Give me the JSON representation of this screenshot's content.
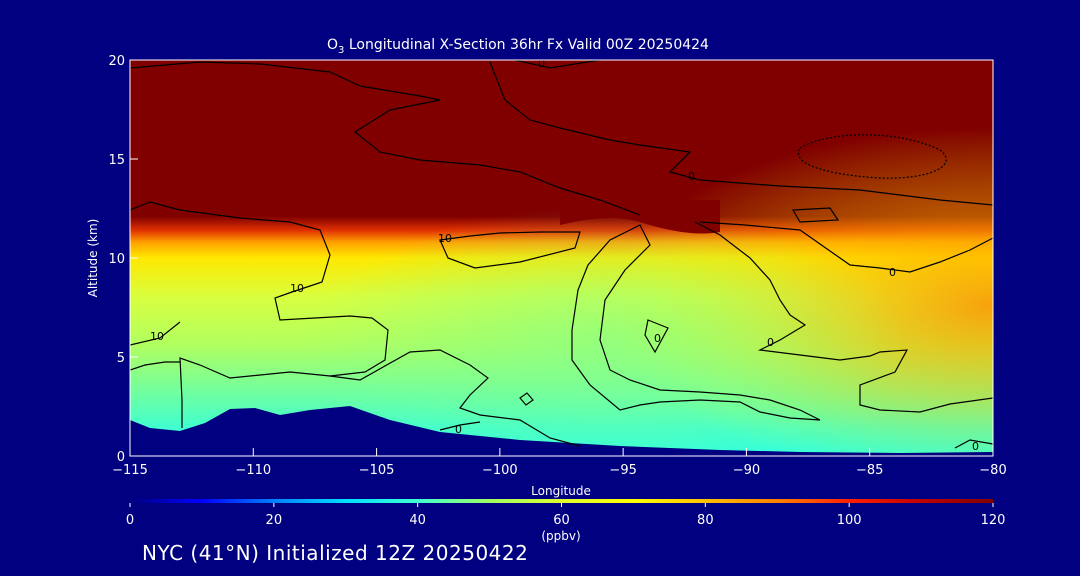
{
  "chart_data": {
    "type": "heatmap",
    "title": {
      "species": "O",
      "subscript": "3",
      "rest": " Longitudinal X-Section 36hr  Fx Valid 00Z 20250424"
    },
    "xlabel": "Longitude",
    "ylabel": "Altitude (km)",
    "xlim": [
      -115,
      -80
    ],
    "ylim": [
      0,
      20
    ],
    "x_ticks": [
      -115,
      -110,
      -105,
      -100,
      -95,
      -90,
      -85,
      -80
    ],
    "x_tick_labels": [
      "−115",
      "−110",
      "−105",
      "−100",
      "−95",
      "−90",
      "−85",
      "−80"
    ],
    "y_ticks": [
      0,
      5,
      10,
      15,
      20
    ],
    "y_tick_labels": [
      "0",
      "5",
      "10",
      "15",
      "20"
    ],
    "colorbar": {
      "min": 0,
      "max": 120,
      "ticks": [
        0,
        20,
        40,
        60,
        80,
        100,
        120
      ],
      "tick_labels": [
        "0",
        "20",
        "40",
        "60",
        "80",
        "100",
        "120"
      ],
      "units": "(ppbv)",
      "colors": [
        "#000080",
        "#0000ff",
        "#0080ff",
        "#00e0ff",
        "#40ffd0",
        "#a0ff60",
        "#e0ff30",
        "#ffff00",
        "#ffc000",
        "#ff8000",
        "#ff2000",
        "#c00000",
        "#800000"
      ]
    },
    "contour_labels": [
      "0",
      "10",
      "10",
      "10",
      "0",
      "0",
      "0",
      "0",
      "0",
      "0"
    ],
    "terrain_color": "#000080"
  },
  "footer": {
    "text": "NYC (41°N) Initialized 12Z 20250422"
  }
}
